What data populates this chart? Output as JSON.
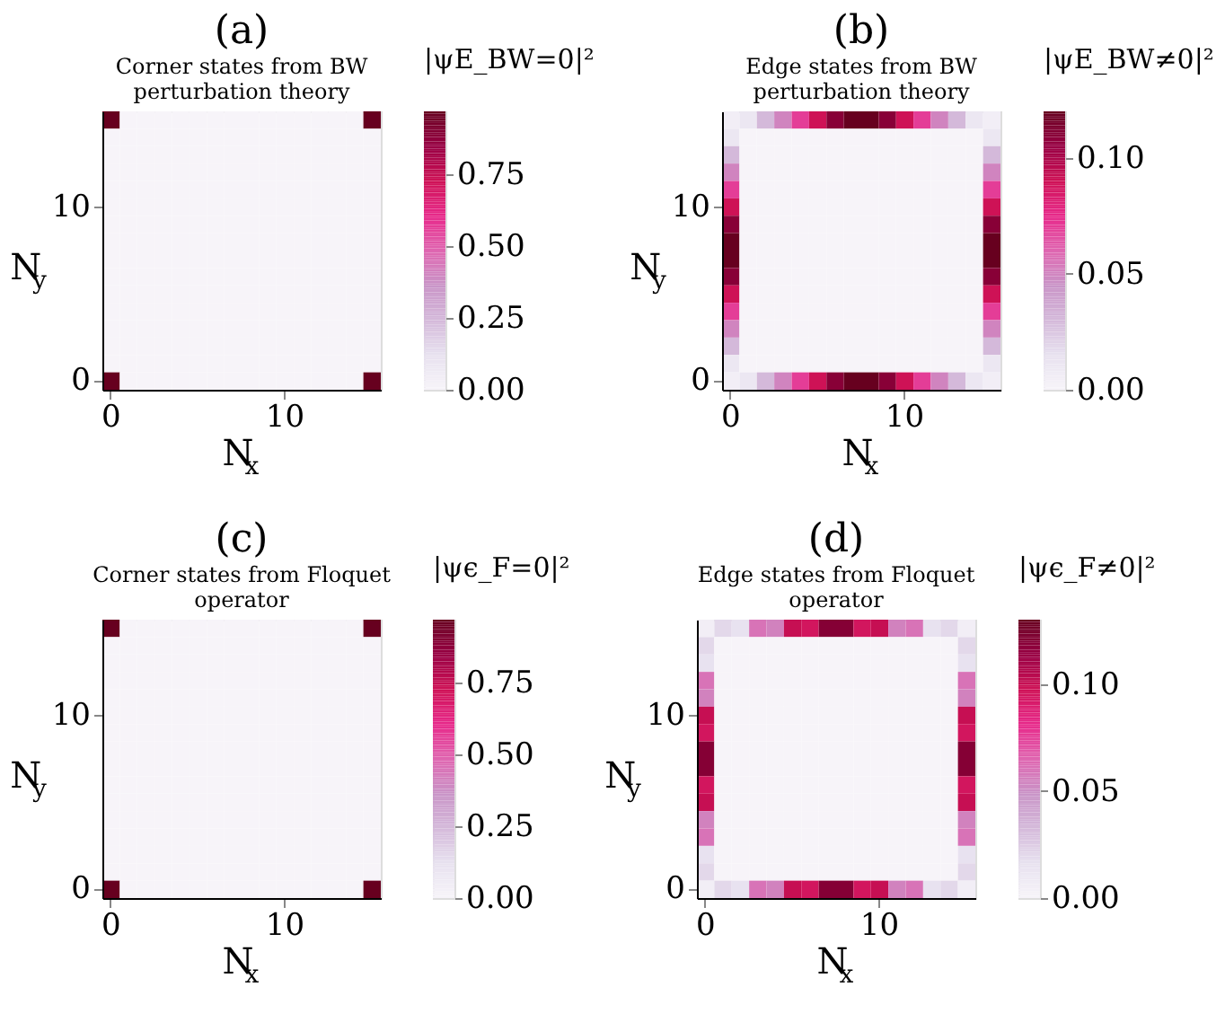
{
  "chart_data": [
    {
      "type": "heatmap",
      "title": "(a)",
      "subtitle": "Corner states from BW perturbation theory",
      "xlabel": "N$_{x}$",
      "ylabel": "N$_{y}$",
      "legend_title": "|ψE_BW=0|²",
      "clim": [
        0,
        0.97
      ],
      "cticks": [
        {
          "value": 0,
          "label": "0.00"
        },
        0.25,
        {
          "value": 0.5,
          "label": "0.50"
        },
        0.75
      ],
      "categories": [
        "0",
        null,
        null,
        null,
        null,
        null,
        null,
        null,
        null,
        null,
        "10",
        null,
        null,
        null,
        null,
        null
      ],
      "y_categories": [
        null,
        null,
        null,
        null,
        null,
        "10",
        null,
        null,
        null,
        null,
        null,
        null,
        null,
        null,
        null,
        "0"
      ],
      "cells": [
        [
          0.97,
          0,
          0,
          0,
          0,
          0,
          0,
          0,
          0,
          0,
          0,
          0,
          0,
          0,
          0,
          0.97
        ],
        [
          0,
          0,
          0,
          0,
          0,
          0,
          0,
          0,
          0,
          0,
          0,
          0,
          0,
          0,
          0,
          0
        ],
        [
          0,
          0,
          0,
          0,
          0,
          0,
          0,
          0,
          0,
          0,
          0,
          0,
          0,
          0,
          0,
          0
        ],
        [
          0,
          0,
          0,
          0,
          0,
          0,
          0,
          0,
          0,
          0,
          0,
          0,
          0,
          0,
          0,
          0
        ],
        [
          0,
          0,
          0,
          0,
          0,
          0,
          0,
          0,
          0,
          0,
          0,
          0,
          0,
          0,
          0,
          0
        ],
        [
          0,
          0,
          0,
          0,
          0,
          0,
          0,
          0,
          0,
          0,
          0,
          0,
          0,
          0,
          0,
          0
        ],
        [
          0,
          0,
          0,
          0,
          0,
          0,
          0,
          0,
          0,
          0,
          0,
          0,
          0,
          0,
          0,
          0
        ],
        [
          0,
          0,
          0,
          0,
          0,
          0,
          0,
          0,
          0,
          0,
          0,
          0,
          0,
          0,
          0,
          0
        ],
        [
          0,
          0,
          0,
          0,
          0,
          0,
          0,
          0,
          0,
          0,
          0,
          0,
          0,
          0,
          0,
          0
        ],
        [
          0,
          0,
          0,
          0,
          0,
          0,
          0,
          0,
          0,
          0,
          0,
          0,
          0,
          0,
          0,
          0
        ],
        [
          0,
          0,
          0,
          0,
          0,
          0,
          0,
          0,
          0,
          0,
          0,
          0,
          0,
          0,
          0,
          0
        ],
        [
          0,
          0,
          0,
          0,
          0,
          0,
          0,
          0,
          0,
          0,
          0,
          0,
          0,
          0,
          0,
          0
        ],
        [
          0,
          0,
          0,
          0,
          0,
          0,
          0,
          0,
          0,
          0,
          0,
          0,
          0,
          0,
          0,
          0
        ],
        [
          0,
          0,
          0,
          0,
          0,
          0,
          0,
          0,
          0,
          0,
          0,
          0,
          0,
          0,
          0,
          0
        ],
        [
          0,
          0,
          0,
          0,
          0,
          0,
          0,
          0,
          0,
          0,
          0,
          0,
          0,
          0,
          0,
          0
        ],
        [
          0.97,
          0,
          0,
          0,
          0,
          0,
          0,
          0,
          0,
          0,
          0,
          0,
          0,
          0,
          0,
          0.97
        ]
      ]
    },
    {
      "type": "heatmap",
      "title": "(b)",
      "subtitle": "Edge states from BW perturbation theory",
      "xlabel": "N$_{x}$",
      "ylabel": "N$_{y}$",
      "legend_title": "|ψE_BW≠0|²",
      "clim": [
        0,
        0.12
      ],
      "cticks": [
        {
          "value": 0,
          "label": "0.00"
        },
        0.05,
        {
          "value": 0.1,
          "label": "0.10"
        }
      ],
      "categories": [
        "0",
        null,
        null,
        null,
        null,
        null,
        null,
        null,
        null,
        null,
        "10",
        null,
        null,
        null,
        null,
        null
      ],
      "y_categories": [
        null,
        null,
        null,
        null,
        null,
        "10",
        null,
        null,
        null,
        null,
        null,
        null,
        null,
        null,
        null,
        "0"
      ],
      "cells": [
        [
          0.005,
          0.01,
          0.03,
          0.05,
          0.07,
          0.09,
          0.11,
          0.12,
          0.12,
          0.11,
          0.09,
          0.07,
          0.05,
          0.03,
          0.01,
          0.005
        ],
        [
          0.01,
          0,
          0,
          0,
          0,
          0,
          0,
          0,
          0,
          0,
          0,
          0,
          0,
          0,
          0,
          0.01
        ],
        [
          0.03,
          0,
          0,
          0,
          0,
          0,
          0,
          0,
          0,
          0,
          0,
          0,
          0,
          0,
          0,
          0.03
        ],
        [
          0.05,
          0,
          0,
          0,
          0,
          0,
          0,
          0,
          0,
          0,
          0,
          0,
          0,
          0,
          0,
          0.05
        ],
        [
          0.07,
          0,
          0,
          0,
          0,
          0,
          0,
          0,
          0,
          0,
          0,
          0,
          0,
          0,
          0,
          0.07
        ],
        [
          0.09,
          0,
          0,
          0,
          0,
          0,
          0,
          0,
          0,
          0,
          0,
          0,
          0,
          0,
          0,
          0.09
        ],
        [
          0.11,
          0,
          0,
          0,
          0,
          0,
          0,
          0,
          0,
          0,
          0,
          0,
          0,
          0,
          0,
          0.11
        ],
        [
          0.12,
          0,
          0,
          0,
          0,
          0,
          0,
          0,
          0,
          0,
          0,
          0,
          0,
          0,
          0,
          0.12
        ],
        [
          0.12,
          0,
          0,
          0,
          0,
          0,
          0,
          0,
          0,
          0,
          0,
          0,
          0,
          0,
          0,
          0.12
        ],
        [
          0.11,
          0,
          0,
          0,
          0,
          0,
          0,
          0,
          0,
          0,
          0,
          0,
          0,
          0,
          0,
          0.11
        ],
        [
          0.09,
          0,
          0,
          0,
          0,
          0,
          0,
          0,
          0,
          0,
          0,
          0,
          0,
          0,
          0,
          0.09
        ],
        [
          0.07,
          0,
          0,
          0,
          0,
          0,
          0,
          0,
          0,
          0,
          0,
          0,
          0,
          0,
          0,
          0.07
        ],
        [
          0.05,
          0,
          0,
          0,
          0,
          0,
          0,
          0,
          0,
          0,
          0,
          0,
          0,
          0,
          0,
          0.05
        ],
        [
          0.03,
          0,
          0,
          0,
          0,
          0,
          0,
          0,
          0,
          0,
          0,
          0,
          0,
          0,
          0,
          0.03
        ],
        [
          0.01,
          0,
          0,
          0,
          0,
          0,
          0,
          0,
          0,
          0,
          0,
          0,
          0,
          0,
          0,
          0.01
        ],
        [
          0.005,
          0.01,
          0.03,
          0.05,
          0.07,
          0.09,
          0.11,
          0.12,
          0.12,
          0.11,
          0.09,
          0.07,
          0.05,
          0.03,
          0.01,
          0.005
        ]
      ]
    },
    {
      "type": "heatmap",
      "title": "(c)",
      "subtitle": "Corner states from Floquet operator",
      "xlabel": "N$_{x}$",
      "ylabel": "N$_{y}$",
      "legend_title": "|ψϵ_F=0|²",
      "clim": [
        0,
        0.97
      ],
      "cticks": [
        {
          "value": 0,
          "label": "0.00"
        },
        0.25,
        {
          "value": 0.5,
          "label": "0.50"
        },
        0.75
      ],
      "categories": [
        "0",
        null,
        null,
        null,
        null,
        null,
        null,
        null,
        null,
        null,
        "10",
        null,
        null,
        null,
        null,
        null
      ],
      "y_categories": [
        null,
        null,
        null,
        null,
        null,
        "10",
        null,
        null,
        null,
        null,
        null,
        null,
        null,
        null,
        null,
        "0"
      ],
      "cells": [
        [
          0.97,
          0,
          0,
          0,
          0,
          0,
          0,
          0,
          0,
          0,
          0,
          0,
          0,
          0,
          0,
          0.97
        ],
        [
          0,
          0,
          0,
          0,
          0,
          0,
          0,
          0,
          0,
          0,
          0,
          0,
          0,
          0,
          0,
          0
        ],
        [
          0,
          0,
          0,
          0,
          0,
          0,
          0,
          0,
          0,
          0,
          0,
          0,
          0,
          0,
          0,
          0
        ],
        [
          0,
          0,
          0,
          0,
          0,
          0,
          0,
          0,
          0,
          0,
          0,
          0,
          0,
          0,
          0,
          0
        ],
        [
          0,
          0,
          0,
          0,
          0,
          0,
          0,
          0,
          0,
          0,
          0,
          0,
          0,
          0,
          0,
          0
        ],
        [
          0,
          0,
          0,
          0,
          0,
          0,
          0,
          0,
          0,
          0,
          0,
          0,
          0,
          0,
          0,
          0
        ],
        [
          0,
          0,
          0,
          0,
          0,
          0,
          0,
          0,
          0,
          0,
          0,
          0,
          0,
          0,
          0,
          0
        ],
        [
          0,
          0,
          0,
          0,
          0,
          0,
          0,
          0,
          0,
          0,
          0,
          0,
          0,
          0,
          0,
          0
        ],
        [
          0,
          0,
          0,
          0,
          0,
          0,
          0,
          0,
          0,
          0,
          0,
          0,
          0,
          0,
          0,
          0
        ],
        [
          0,
          0,
          0,
          0,
          0,
          0,
          0,
          0,
          0,
          0,
          0,
          0,
          0,
          0,
          0,
          0
        ],
        [
          0,
          0,
          0,
          0,
          0,
          0,
          0,
          0,
          0,
          0,
          0,
          0,
          0,
          0,
          0,
          0
        ],
        [
          0,
          0,
          0,
          0,
          0,
          0,
          0,
          0,
          0,
          0,
          0,
          0,
          0,
          0,
          0,
          0
        ],
        [
          0,
          0,
          0,
          0,
          0,
          0,
          0,
          0,
          0,
          0,
          0,
          0,
          0,
          0,
          0,
          0
        ],
        [
          0,
          0,
          0,
          0,
          0,
          0,
          0,
          0,
          0,
          0,
          0,
          0,
          0,
          0,
          0,
          0
        ],
        [
          0,
          0,
          0,
          0,
          0,
          0,
          0,
          0,
          0,
          0,
          0,
          0,
          0,
          0,
          0,
          0
        ],
        [
          0.97,
          0,
          0,
          0,
          0,
          0,
          0,
          0,
          0,
          0,
          0,
          0,
          0,
          0,
          0,
          0.97
        ]
      ]
    },
    {
      "type": "heatmap",
      "title": "(d)",
      "subtitle": "Edge states from Floquet operator",
      "xlabel": "N$_{x}$",
      "ylabel": "N$_{y}$",
      "legend_title": "|ψϵ_F≠0|²",
      "clim": [
        0,
        0.13
      ],
      "cticks": [
        {
          "value": 0,
          "label": "0.00"
        },
        0.05,
        {
          "value": 0.1,
          "label": "0.10"
        }
      ],
      "categories": [
        "0",
        null,
        null,
        null,
        null,
        null,
        null,
        null,
        null,
        null,
        "10",
        null,
        null,
        null,
        null,
        null
      ],
      "y_categories": [
        null,
        null,
        null,
        null,
        null,
        "10",
        null,
        null,
        null,
        null,
        null,
        null,
        null,
        null,
        null,
        "0"
      ],
      "cells": [
        [
          0.005,
          0.02,
          0.015,
          0.06,
          0.055,
          0.1,
          0.095,
          0.12,
          0.12,
          0.095,
          0.1,
          0.055,
          0.06,
          0.015,
          0.02,
          0.005
        ],
        [
          0.02,
          0,
          0,
          0,
          0,
          0,
          0,
          0,
          0,
          0,
          0,
          0,
          0,
          0,
          0,
          0.02
        ],
        [
          0.015,
          0,
          0,
          0,
          0,
          0,
          0,
          0,
          0,
          0,
          0,
          0,
          0,
          0,
          0,
          0.015
        ],
        [
          0.06,
          0,
          0,
          0,
          0,
          0,
          0,
          0,
          0,
          0,
          0,
          0,
          0,
          0,
          0,
          0.06
        ],
        [
          0.055,
          0,
          0,
          0,
          0,
          0,
          0,
          0,
          0,
          0,
          0,
          0,
          0,
          0,
          0,
          0.055
        ],
        [
          0.1,
          0,
          0,
          0,
          0,
          0,
          0,
          0,
          0,
          0,
          0,
          0,
          0,
          0,
          0,
          0.1
        ],
        [
          0.095,
          0,
          0,
          0,
          0,
          0,
          0,
          0,
          0,
          0,
          0,
          0,
          0,
          0,
          0,
          0.095
        ],
        [
          0.12,
          0,
          0,
          0,
          0,
          0,
          0,
          0,
          0,
          0,
          0,
          0,
          0,
          0,
          0,
          0.12
        ],
        [
          0.12,
          0,
          0,
          0,
          0,
          0,
          0,
          0,
          0,
          0,
          0,
          0,
          0,
          0,
          0,
          0.12
        ],
        [
          0.095,
          0,
          0,
          0,
          0,
          0,
          0,
          0,
          0,
          0,
          0,
          0,
          0,
          0,
          0,
          0.095
        ],
        [
          0.1,
          0,
          0,
          0,
          0,
          0,
          0,
          0,
          0,
          0,
          0,
          0,
          0,
          0,
          0,
          0.1
        ],
        [
          0.055,
          0,
          0,
          0,
          0,
          0,
          0,
          0,
          0,
          0,
          0,
          0,
          0,
          0,
          0,
          0.055
        ],
        [
          0.06,
          0,
          0,
          0,
          0,
          0,
          0,
          0,
          0,
          0,
          0,
          0,
          0,
          0,
          0,
          0.06
        ],
        [
          0.015,
          0,
          0,
          0,
          0,
          0,
          0,
          0,
          0,
          0,
          0,
          0,
          0,
          0,
          0,
          0.015
        ],
        [
          0.02,
          0,
          0,
          0,
          0,
          0,
          0,
          0,
          0,
          0,
          0,
          0,
          0,
          0,
          0,
          0.02
        ],
        [
          0.005,
          0.02,
          0.015,
          0.06,
          0.055,
          0.1,
          0.095,
          0.12,
          0.12,
          0.095,
          0.1,
          0.055,
          0.06,
          0.015,
          0.02,
          0.005
        ]
      ]
    }
  ]
}
